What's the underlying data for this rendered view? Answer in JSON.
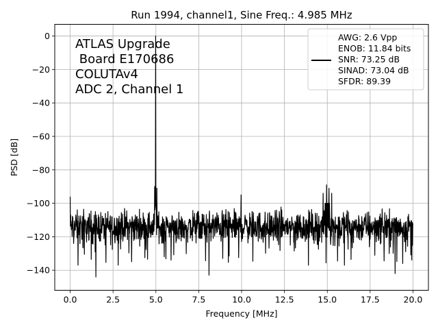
{
  "chart_data": {
    "type": "line",
    "title": "Run 1994, channel1, Sine Freq.: 4.985 MHz",
    "xlabel": "Frequency [MHz]",
    "ylabel": "PSD [dB]",
    "xlim": [
      -0.9,
      20.9
    ],
    "ylim": [
      -152,
      7
    ],
    "xticks": [
      0.0,
      2.5,
      5.0,
      7.5,
      10.0,
      12.5,
      15.0,
      17.5,
      20.0
    ],
    "xtick_labels": [
      "0.0",
      "2.5",
      "5.0",
      "7.5",
      "10.0",
      "12.5",
      "15.0",
      "17.5",
      "20.0"
    ],
    "yticks": [
      0,
      -20,
      -40,
      -60,
      -80,
      -100,
      -120,
      -140
    ],
    "ytick_labels": [
      "0",
      "−20",
      "−40",
      "−60",
      "−80",
      "−100",
      "−120",
      "−140"
    ],
    "grid": true,
    "legend_position": "top-right",
    "line_color": "#000000",
    "annotation": [
      "ATLAS Upgrade",
      " Board E170686",
      "COLUTAv4",
      "ADC 2, Channel 1"
    ],
    "legend_lines": [
      "AWG: 2.6 Vpp",
      "ENOB: 11.84 bits",
      "SNR: 73.25 dB",
      "SINAD: 73.04 dB",
      "SFDR: 89.39"
    ],
    "series": [
      {
        "noise_floor_db": -114,
        "noise_min_db": -144,
        "noise_max_db": -101,
        "peaks": [
          {
            "x": 0.0,
            "y": -96
          },
          {
            "x": 4.985,
            "y": 0
          },
          {
            "x": 4.93,
            "y": -90
          },
          {
            "x": 5.05,
            "y": -91
          },
          {
            "x": 9.97,
            "y": -95
          },
          {
            "x": 14.95,
            "y": -89
          },
          {
            "x": 15.1,
            "y": -91
          },
          {
            "x": 14.75,
            "y": -94
          },
          {
            "x": 15.25,
            "y": -94
          },
          {
            "x": 1.5,
            "y": -144
          },
          {
            "x": 8.1,
            "y": -143
          },
          {
            "x": 18.95,
            "y": -142
          },
          {
            "x": 0.45,
            "y": -137
          },
          {
            "x": 2.8,
            "y": -137
          },
          {
            "x": 13.9,
            "y": -137
          },
          {
            "x": 16.0,
            "y": -137
          }
        ]
      }
    ]
  }
}
